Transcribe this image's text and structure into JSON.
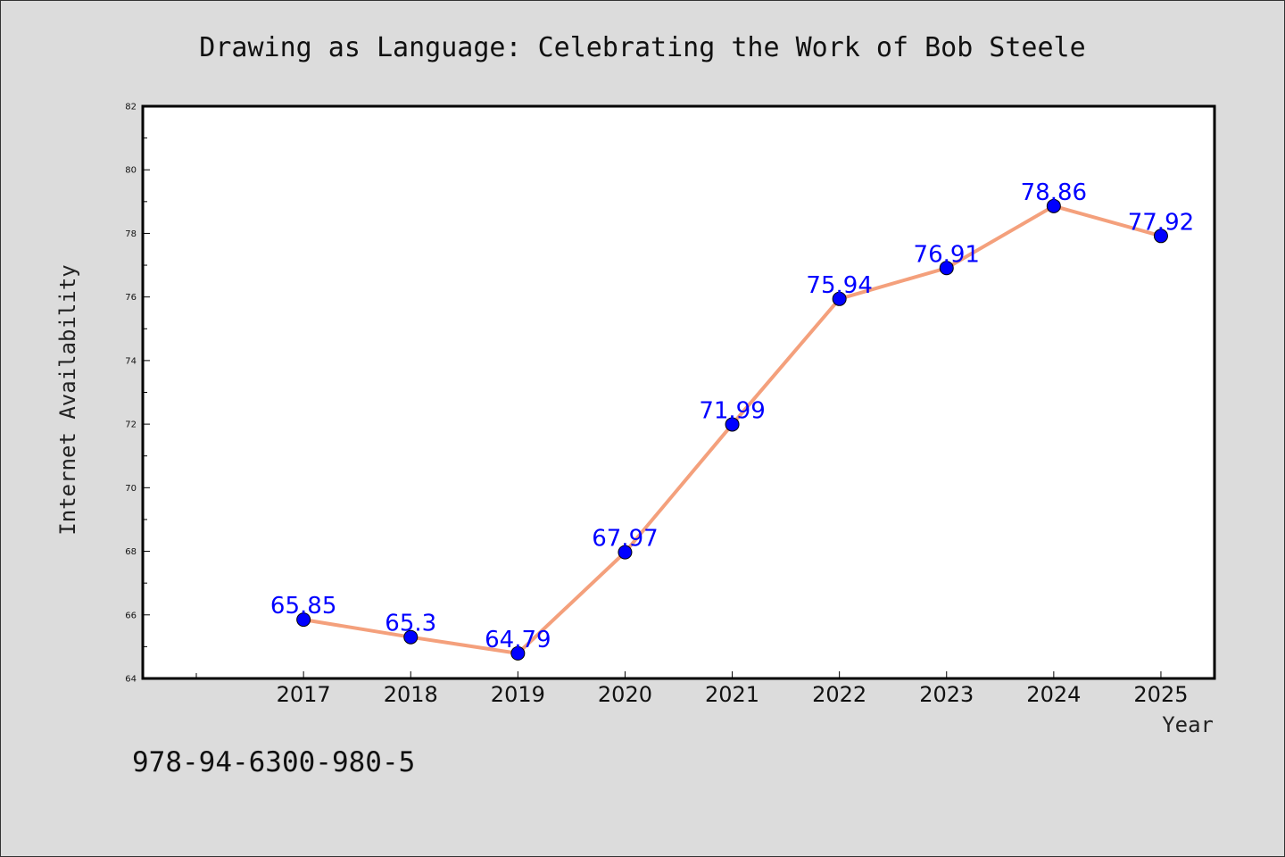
{
  "chart_data": {
    "type": "line",
    "title": "Drawing as Language: Celebrating the Work of Bob Steele",
    "xlabel": "Year",
    "ylabel": "Internet Availability",
    "x": [
      "2017",
      "2018",
      "2019",
      "2020",
      "2021",
      "2022",
      "2023",
      "2024",
      "2025"
    ],
    "values": [
      65.85,
      65.3,
      64.79,
      67.97,
      71.99,
      75.94,
      76.91,
      78.86,
      77.92
    ],
    "data_labels": [
      "65.85",
      "65.3",
      "64.79",
      "67.97",
      "71.99",
      "75.94",
      "76.91",
      "78.86",
      "77.92"
    ],
    "ylim": [
      64,
      82
    ],
    "yticks": [
      64,
      66,
      68,
      70,
      72,
      74,
      76,
      78,
      80,
      82
    ],
    "ytick_labels": [
      "64",
      "66",
      "68",
      "70",
      "72",
      "74",
      "76",
      "78",
      "80",
      "82"
    ],
    "grid": false,
    "line_color": "#f4a07c",
    "marker_color": "#0000ff",
    "label_color": "#0000ff",
    "background_color": "#dcdcdc"
  },
  "footer": {
    "isbn": "978-94-6300-980-5"
  }
}
